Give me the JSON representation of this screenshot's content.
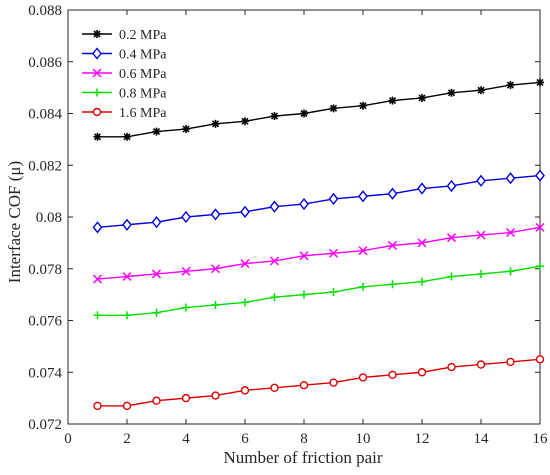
{
  "chart_data": {
    "type": "line",
    "title": "",
    "xlabel": "Number of friction pair",
    "ylabel": "Interface COF (μ)",
    "xlim": [
      0,
      16
    ],
    "ylim": [
      0.072,
      0.088
    ],
    "xticks": [
      0,
      2,
      4,
      6,
      8,
      10,
      12,
      14,
      16
    ],
    "xtick_labels": [
      "0",
      "2",
      "4",
      "6",
      "8",
      "10",
      "12",
      "14",
      "16"
    ],
    "yticks": [
      0.072,
      0.074,
      0.076,
      0.078,
      0.08,
      0.082,
      0.084,
      0.086,
      0.088
    ],
    "ytick_labels": [
      "0.072",
      "0.074",
      "0.076",
      "0.078",
      "0.08",
      "0.082",
      "0.084",
      "0.086",
      "0.088"
    ],
    "grid": false,
    "legend_position": "top-left",
    "x": [
      1,
      2,
      3,
      4,
      5,
      6,
      7,
      8,
      9,
      10,
      11,
      12,
      13,
      14,
      15,
      16
    ],
    "series": [
      {
        "name": "0.2 MPa",
        "color": "#000000",
        "marker": "asterisk",
        "values": [
          0.0831,
          0.0831,
          0.0833,
          0.0834,
          0.0836,
          0.0837,
          0.0839,
          0.084,
          0.0842,
          0.0843,
          0.0845,
          0.0846,
          0.0848,
          0.0849,
          0.0851,
          0.0852
        ]
      },
      {
        "name": "0.4 MPa",
        "color": "#0000dd",
        "marker": "diamond",
        "values": [
          0.0796,
          0.0797,
          0.0798,
          0.08,
          0.0801,
          0.0802,
          0.0804,
          0.0805,
          0.0807,
          0.0808,
          0.0809,
          0.0811,
          0.0812,
          0.0814,
          0.0815,
          0.0816
        ]
      },
      {
        "name": "0.6 MPa",
        "color": "#ff00ff",
        "marker": "x",
        "values": [
          0.0776,
          0.0777,
          0.0778,
          0.0779,
          0.078,
          0.0782,
          0.0783,
          0.0785,
          0.0786,
          0.0787,
          0.0789,
          0.079,
          0.0792,
          0.0793,
          0.0794,
          0.0796
        ]
      },
      {
        "name": "0.8 MPa",
        "color": "#00dd00",
        "marker": "plus",
        "values": [
          0.0762,
          0.0762,
          0.0763,
          0.0765,
          0.0766,
          0.0767,
          0.0769,
          0.077,
          0.0771,
          0.0773,
          0.0774,
          0.0775,
          0.0777,
          0.0778,
          0.0779,
          0.0781
        ]
      },
      {
        "name": "1.6 MPa",
        "color": "#dd0000",
        "marker": "circle",
        "values": [
          0.0727,
          0.0727,
          0.0729,
          0.073,
          0.0731,
          0.0733,
          0.0734,
          0.0735,
          0.0736,
          0.0738,
          0.0739,
          0.074,
          0.0742,
          0.0743,
          0.0744,
          0.0745
        ]
      }
    ]
  }
}
